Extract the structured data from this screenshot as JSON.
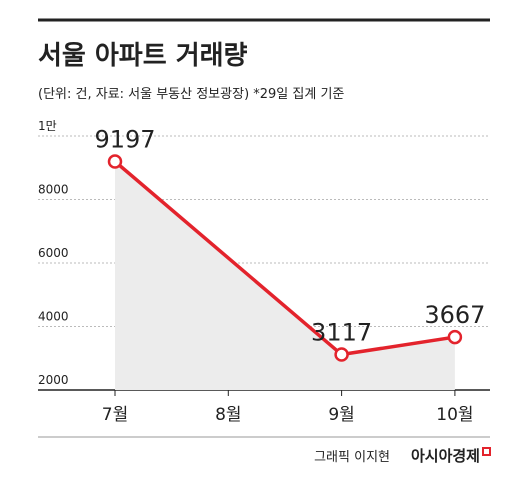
{
  "chart_data": {
    "type": "line",
    "title": "서울 아파트 거래량",
    "subtitle": "(단위: 건, 자료: 서울 부동산 정보광장)  *29일 집계 기준",
    "categories": [
      "7월",
      "8월",
      "9월",
      "10월"
    ],
    "series": [
      {
        "name": "거래량",
        "color": "#e3232c",
        "x": [
          "7월",
          "9월",
          "10월"
        ],
        "values": [
          9197,
          3117,
          3667
        ]
      }
    ],
    "ylim": [
      2000,
      10000
    ],
    "yticks": [
      2000,
      4000,
      6000,
      8000,
      {
        "value": 10000,
        "label": "1만"
      }
    ],
    "grid": true
  },
  "footer": {
    "credit": "그래픽 이지현",
    "brand": "아시아경제"
  }
}
